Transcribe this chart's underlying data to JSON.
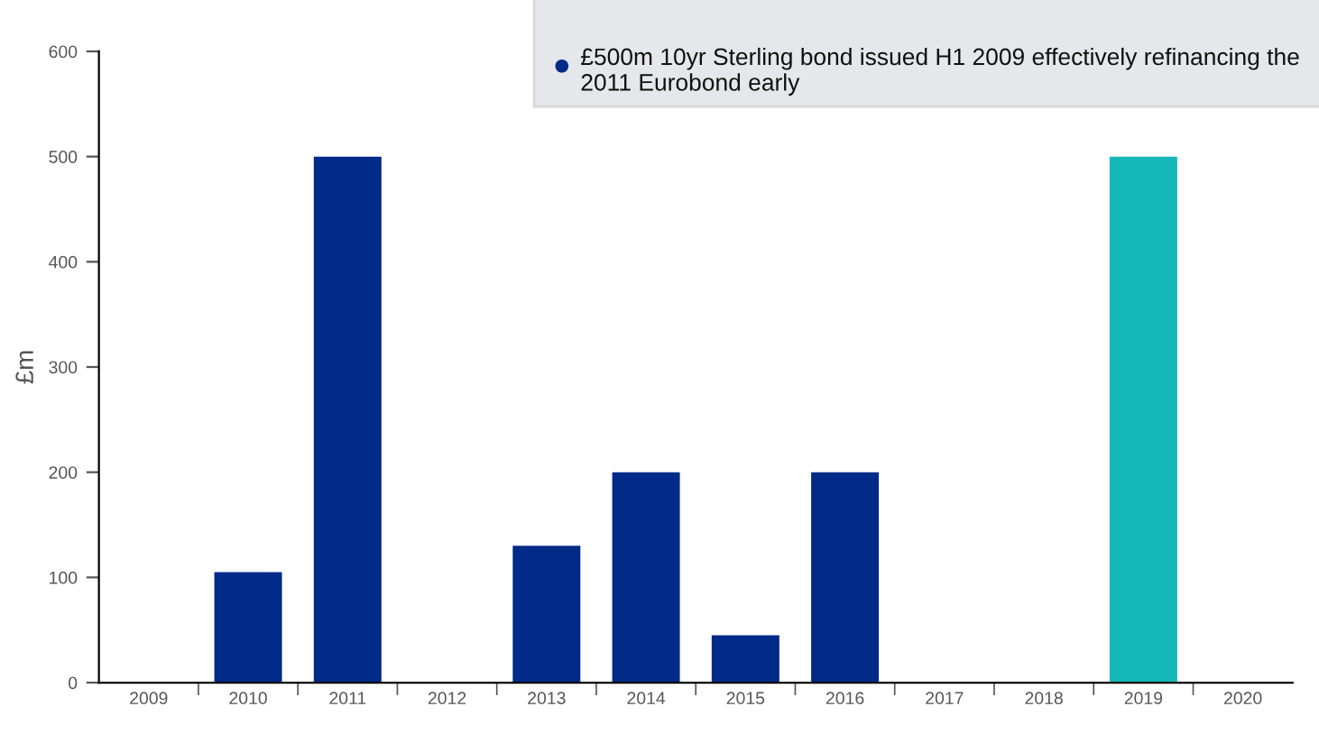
{
  "chart_data": {
    "type": "bar",
    "categories": [
      "2009",
      "2010",
      "2011",
      "2012",
      "2013",
      "2014",
      "2015",
      "2016",
      "2017",
      "2018",
      "2019",
      "2020"
    ],
    "values": [
      null,
      105,
      500,
      null,
      130,
      200,
      45,
      200,
      null,
      null,
      500,
      null
    ],
    "colors": [
      "#002a87",
      "#002a87",
      "#002a87",
      "#002a87",
      "#002a87",
      "#002a87",
      "#002a87",
      "#002a87",
      "#002a87",
      "#002a87",
      "#15b8b8",
      "#002a87"
    ],
    "ylabel": "£m",
    "ylim": [
      0,
      600
    ],
    "yticks": [
      0,
      100,
      200,
      300,
      400,
      500,
      600
    ],
    "annotations": [
      "£500m 10yr Sterling bond issued H1 2009 effectively refinancing the 2011 Eurobond early"
    ],
    "grid": false
  }
}
